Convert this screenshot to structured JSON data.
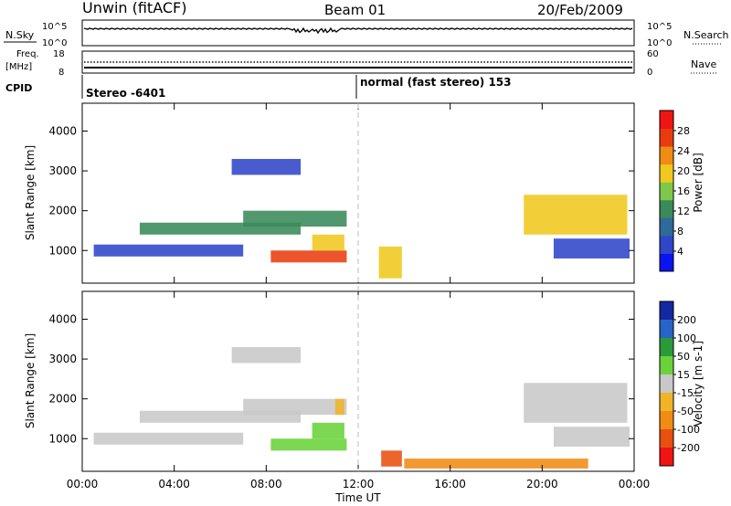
{
  "header": {
    "station": "Unwin (fitACF)",
    "beam": "Beam 01",
    "date": "20/Feb/2009"
  },
  "noise_panel": {
    "left_label": "N.Sky",
    "right_label": "N.Search",
    "left_ticks": [
      "10^5",
      "10^0"
    ],
    "right_ticks": [
      "10^5",
      "10^0"
    ]
  },
  "freq_panel": {
    "left_label_1": "Freq.",
    "left_label_2": "[MHz]",
    "right_label": "Nave",
    "left_ticks": [
      "18",
      "8"
    ],
    "right_ticks": [
      "60",
      "0"
    ]
  },
  "cpid": {
    "label": "CPID",
    "segments": [
      {
        "text": "Stereo -6401",
        "start_hour": 0
      },
      {
        "text": "normal (fast stereo) 153",
        "start_hour": 12
      }
    ]
  },
  "colors": {
    "power_scale": [
      "#0a14f0",
      "#3046c8",
      "#2f6a9a",
      "#3a8a5a",
      "#7ec84a",
      "#f0c81e",
      "#f08c14",
      "#e83c10",
      "#f01414"
    ],
    "velocity_scale": [
      "#1428a0",
      "#2864c8",
      "#2a9a3a",
      "#6ad23a",
      "#c8c8c8",
      "#f0b428",
      "#f08c14",
      "#e85010",
      "#f01414"
    ]
  },
  "chart_data": [
    {
      "type": "heatmap",
      "title": "",
      "xlabel": "",
      "ylabel": "Slant Range [km]",
      "xlim": [
        0,
        24
      ],
      "ylim": [
        180,
        4700
      ],
      "yticks": [
        1000,
        2000,
        3000,
        4000
      ],
      "colorbar_label": "Power [dB]",
      "colorbar_ticks": [
        4,
        8,
        12,
        16,
        20,
        24,
        28
      ],
      "colorbar_range": [
        0,
        32
      ],
      "regions": [
        {
          "x": [
            0.5,
            7.0
          ],
          "y": [
            850,
            1150
          ],
          "value": 6
        },
        {
          "x": [
            2.5,
            9.5
          ],
          "y": [
            1400,
            1700
          ],
          "value": 14
        },
        {
          "x": [
            7.0,
            11.5
          ],
          "y": [
            1600,
            2000
          ],
          "value": 12
        },
        {
          "x": [
            8.2,
            11.5
          ],
          "y": [
            700,
            1000
          ],
          "value": 28
        },
        {
          "x": [
            10.0,
            11.4
          ],
          "y": [
            1000,
            1400
          ],
          "value": 18
        },
        {
          "x": [
            6.5,
            9.5
          ],
          "y": [
            2900,
            3300
          ],
          "value": 4
        },
        {
          "x": [
            12.9,
            13.9
          ],
          "y": [
            300,
            1100
          ],
          "value": 20
        },
        {
          "x": [
            19.2,
            23.7
          ],
          "y": [
            1400,
            2400
          ],
          "value": 18
        },
        {
          "x": [
            20.5,
            23.8
          ],
          "y": [
            800,
            1300
          ],
          "value": 5
        }
      ]
    },
    {
      "type": "heatmap",
      "title": "",
      "xlabel": "Time UT",
      "ylabel": "Slant Range [km]",
      "xlim": [
        0,
        24
      ],
      "ylim": [
        180,
        4700
      ],
      "x_tick_labels": [
        "00:00",
        "04:00",
        "08:00",
        "12:00",
        "16:00",
        "20:00",
        "00:00"
      ],
      "yticks": [
        1000,
        2000,
        3000,
        4000
      ],
      "colorbar_label": "Velocity [m s-1]",
      "colorbar_ticks": [
        200,
        100,
        50,
        15,
        -15,
        -50,
        -100,
        -200
      ],
      "regions": [
        {
          "x": [
            0.5,
            7.0
          ],
          "y": [
            850,
            1150
          ],
          "value": 0
        },
        {
          "x": [
            2.5,
            9.5
          ],
          "y": [
            1400,
            1700
          ],
          "value": 0
        },
        {
          "x": [
            7.0,
            11.5
          ],
          "y": [
            1600,
            2000
          ],
          "value": 0
        },
        {
          "x": [
            8.2,
            11.5
          ],
          "y": [
            700,
            1000
          ],
          "value": 40
        },
        {
          "x": [
            10.0,
            11.4
          ],
          "y": [
            1000,
            1400
          ],
          "value": 30
        },
        {
          "x": [
            11.0,
            11.4
          ],
          "y": [
            1600,
            2000
          ],
          "value": -50
        },
        {
          "x": [
            6.5,
            9.5
          ],
          "y": [
            2900,
            3300
          ],
          "value": 0
        },
        {
          "x": [
            13.0,
            13.9
          ],
          "y": [
            300,
            700
          ],
          "value": -150
        },
        {
          "x": [
            14.0,
            22.0
          ],
          "y": [
            250,
            500
          ],
          "value": -60
        },
        {
          "x": [
            19.2,
            23.7
          ],
          "y": [
            1400,
            2400
          ],
          "value": 0
        },
        {
          "x": [
            20.5,
            23.8
          ],
          "y": [
            800,
            1300
          ],
          "value": 0
        }
      ]
    }
  ]
}
